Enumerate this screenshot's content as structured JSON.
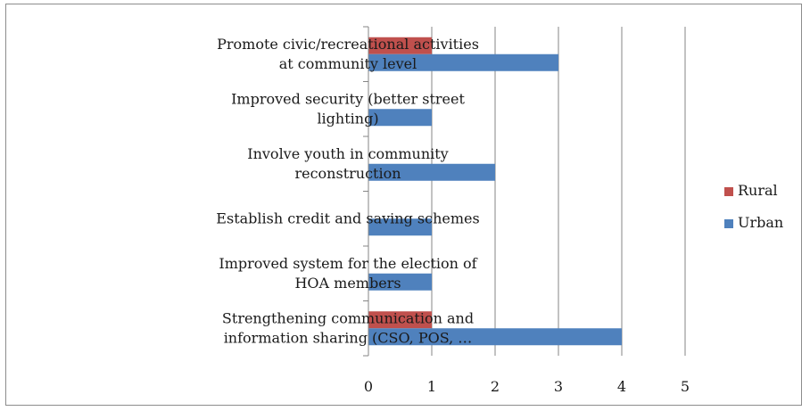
{
  "chart_data": {
    "type": "bar",
    "orientation": "horizontal",
    "title": "",
    "xlabel": "",
    "ylabel": "",
    "categories": [
      [
        "Strengthening communication and",
        "information sharing (CSO, POS, …"
      ],
      [
        "Improved system for the election of",
        "HOA members"
      ],
      [
        "Establish credit and saving schemes"
      ],
      [
        "Involve youth in community",
        "reconstruction"
      ],
      [
        "Improved security (better street",
        "lighting)"
      ],
      [
        "Promote civic/recreational activities",
        "at community level"
      ]
    ],
    "series": [
      {
        "name": "Rural",
        "values": [
          1,
          0,
          0,
          0,
          0,
          1
        ],
        "color": "#c0504d"
      },
      {
        "name": "Urban",
        "values": [
          4,
          1,
          1,
          2,
          1,
          3
        ],
        "color": "#4f81bd"
      }
    ],
    "xlim": [
      0,
      5
    ],
    "xticks": [
      "0",
      "1",
      "2",
      "3",
      "4",
      "5"
    ],
    "grid": "vertical",
    "legend": {
      "position": "right",
      "items": [
        "Rural",
        "Urban"
      ]
    }
  }
}
